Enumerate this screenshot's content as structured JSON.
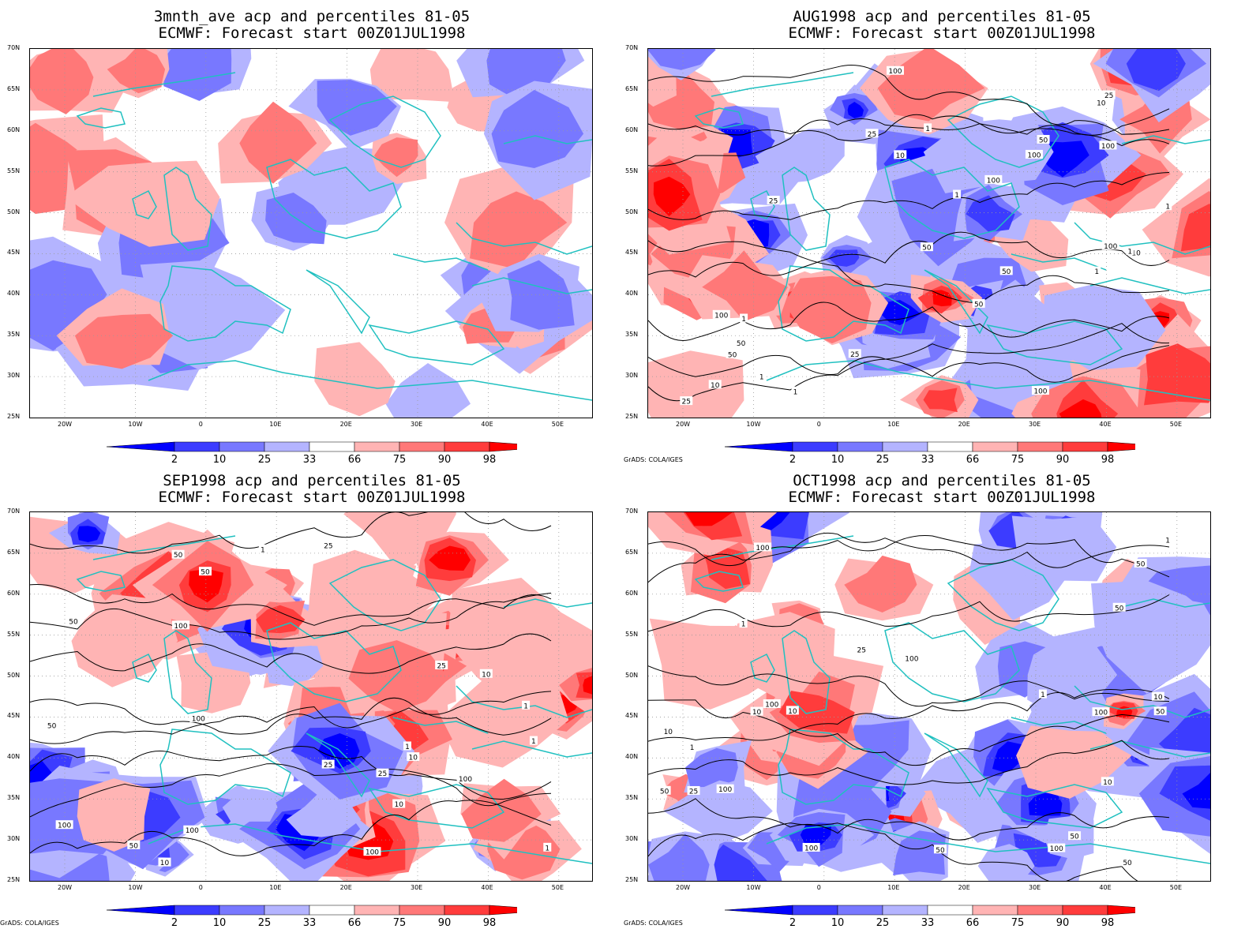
{
  "panels": [
    {
      "title1": "3mnth_ave acp and percentiles 81-05",
      "title2": "ECMWF: Forecast start 00Z01JUL1998",
      "credit": "",
      "contour_labels": []
    },
    {
      "title1": "AUG1998 acp and percentiles 81-05",
      "title2": "ECMWF: Forecast start 00Z01JUL1998",
      "credit": "GrADS: COLA/IGES",
      "contour_labels": [
        "100",
        "100",
        "100",
        "100",
        "100",
        "100",
        "50",
        "50",
        "50",
        "50",
        "50",
        "50",
        "100",
        "25",
        "25",
        "25",
        "10",
        "10",
        "10",
        "25",
        "25",
        "1",
        "1",
        "1",
        "1",
        "1",
        "1",
        "1",
        "1",
        "10"
      ]
    },
    {
      "title1": "SEP1998 acp and percentiles 81-05",
      "title2": "ECMWF: Forecast start 00Z01JUL1998",
      "credit": "GrADS: COLA/IGES",
      "contour_labels": [
        "100",
        "100",
        "100",
        "100",
        "100",
        "100",
        "50",
        "50",
        "50",
        "25",
        "25",
        "25",
        "50",
        "10",
        "10",
        "10",
        "50",
        "25",
        "10",
        "1",
        "1",
        "1",
        "1",
        "1"
      ]
    },
    {
      "title1": "OCT1998 acp and percentiles 81-05",
      "title2": "ECMWF: Forecast start 00Z01JUL1998",
      "credit": "GrADS: COLA/IGES",
      "contour_labels": [
        "100",
        "100",
        "100",
        "50",
        "100",
        "50",
        "100",
        "100",
        "100",
        "50",
        "50",
        "50",
        "50",
        "50",
        "25",
        "25",
        "10",
        "10",
        "10",
        "1",
        "1",
        "1",
        "10",
        "10",
        "1"
      ]
    }
  ],
  "lat_ticks": [
    "70N",
    "65N",
    "60N",
    "55N",
    "50N",
    "45N",
    "40N",
    "35N",
    "30N",
    "25N"
  ],
  "lon_ticks": [
    "20W",
    "10W",
    "0",
    "10E",
    "20E",
    "30E",
    "40E",
    "50E"
  ],
  "legend": {
    "labels": [
      "2",
      "10",
      "25",
      "33",
      "66",
      "75",
      "90",
      "98"
    ],
    "colors": [
      "#0000ff",
      "#3c3cff",
      "#7878ff",
      "#b4b4ff",
      "#ffffff",
      "#ffb4b4",
      "#ff7878",
      "#ff3c3c",
      "#ff0000"
    ]
  },
  "colors": {
    "coast": "#20c0c0",
    "contour": "#000000",
    "grid": "#9a9a9a"
  }
}
